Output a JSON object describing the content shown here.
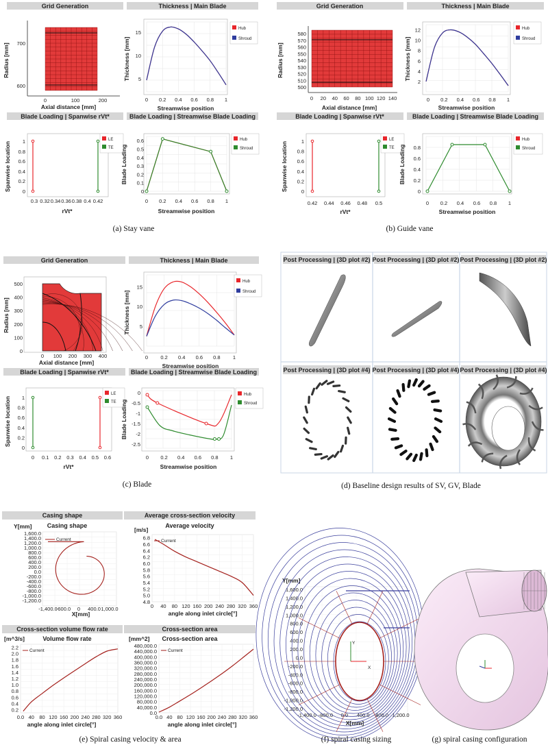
{
  "captions": {
    "a": "(a) Stay vane",
    "b": "(b) Guide vane",
    "c": "(c) Blade",
    "d": "(d) Baseline design results of SV, GV, Blade",
    "e": "(e) Spiral casing velocity & area",
    "f": "(f) spiral casing sizing",
    "g": "(g) spiral casing configuration"
  },
  "titles": {
    "grid": "Grid Generation",
    "thick": "Thickness | Main Blade",
    "span": "Blade Loading | Spanwise rVt*",
    "stream": "Blade Loading | Streamwise Blade Loading",
    "pp2": "Post Processing | (3D plot #2)",
    "pp4": "Post Processing | (3D plot #4)",
    "casing_shape": "Casing shape",
    "avg_vel": "Average cross-section velocity",
    "avg_vel_inner": "Average velocity",
    "flow": "Cross-section volume flow rate",
    "flow_inner": "Volume flow rate",
    "area": "Cross-section area",
    "area_inner": "Cross-section area"
  },
  "labels": {
    "radius": "Radius [mm]",
    "axial": "Axial distance [mm]",
    "thickness": "Thickness [mm]",
    "streamwise": "Streamwise position",
    "spanwise": "Spanwise location",
    "rvt": "rVt*",
    "loading": "Blade Loading",
    "ymm": "Y[mm]",
    "xmm": "X[mm]",
    "ms": "[m/s]",
    "m3s": "[m^3/s]",
    "m2": "[mm^2]",
    "angle": "angle along inlet circle[°]",
    "x_axis": "X",
    "y_axis": "Y"
  },
  "legend": {
    "hub": "Hub",
    "shroud": "Shroud",
    "le": "LE",
    "te": "TE",
    "current": "Current"
  },
  "colors": {
    "hub": "#e8262b",
    "shroud": "#2f3d9e",
    "le": "#e8262b",
    "te": "#2e8b2e",
    "casing": "#a4201c",
    "grid": "#e23a3a",
    "pink": "#f0d4ec"
  },
  "ticks": {
    "a_grid_y": [
      "700",
      "600"
    ],
    "a_grid_x": [
      "0",
      "100",
      "200"
    ],
    "a_thick_y": [
      "15",
      "10",
      "5"
    ],
    "unit_x": [
      "0",
      "0.2",
      "0.4",
      "0.6",
      "0.8",
      "1"
    ],
    "a_span_x": [
      "0.3",
      "0.32",
      "0.34",
      "0.36",
      "0.38",
      "0.4",
      "0.42"
    ],
    "span_y": [
      "1",
      "0.8",
      "0.6",
      "0.4",
      "0.2",
      "0"
    ],
    "a_load_y": [
      "0.6",
      "0.5",
      "0.4",
      "0.3",
      "0.2",
      "0.1",
      "0"
    ],
    "b_grid_y": [
      "580",
      "570",
      "560",
      "550",
      "540",
      "530",
      "520",
      "510",
      "500"
    ],
    "b_grid_x": [
      "0",
      "20",
      "40",
      "60",
      "80",
      "100",
      "120",
      "140"
    ],
    "b_thick_y": [
      "12",
      "10",
      "8",
      "6",
      "4",
      "2"
    ],
    "b_span_x": [
      "0.42",
      "0.44",
      "0.46",
      "0.48",
      "0.5"
    ],
    "b_load_y": [
      "0.8",
      "0.6",
      "0.4",
      "0.2",
      "0"
    ],
    "c_grid_y": [
      "500",
      "400",
      "300",
      "200",
      "100",
      "0"
    ],
    "c_grid_x": [
      "0",
      "100",
      "200",
      "300",
      "400"
    ],
    "c_thick_y": [
      "15",
      "10",
      "5"
    ],
    "c_span_x": [
      "0",
      "0.1",
      "0.2",
      "0.3",
      "0.4",
      "0.5",
      "0.6"
    ],
    "c_load_y": [
      "0",
      "-0.5",
      "-1",
      "-1.5",
      "-2",
      "-2.5"
    ],
    "e_shape_y": [
      "1,600.0",
      "1,400.0",
      "1,200.0",
      "1,000.0",
      "800.0",
      "600.0",
      "400.0",
      "200.0",
      "0.0",
      "-200.0",
      "-400.0",
      "-600.0",
      "-800.0",
      "-1,000.0",
      "-1,200.0"
    ],
    "e_shape_x": [
      "-1,400.0",
      "-600.0",
      "0",
      "400.0",
      "1,000.0"
    ],
    "e_vel_y": [
      "6.8",
      "6.6",
      "6.4",
      "6.2",
      "6.0",
      "5.8",
      "5.6",
      "5.4",
      "5.2",
      "5.0",
      "4.8"
    ],
    "e_angle_x": [
      "0.0",
      "40",
      "80",
      "120",
      "160",
      "200",
      "240",
      "280",
      "320",
      "360"
    ],
    "e_vel_x": [
      "0",
      "40",
      "80",
      "120",
      "160",
      "200",
      "240",
      "280",
      "320",
      "360"
    ],
    "e_flow_y": [
      "2.2",
      "2.0",
      "1.8",
      "1.6",
      "1.4",
      "1.2",
      "1.0",
      "0.8",
      "0.6",
      "0.4",
      "0.2"
    ],
    "e_area_y": [
      "480,000.0",
      "440,000.0",
      "400,000.0",
      "360,000.0",
      "320,000.0",
      "280,000.0",
      "240,000.0",
      "200,000.0",
      "160,000.0",
      "120,000.0",
      "80,000.0",
      "40,000.0",
      "0.0"
    ],
    "f_y": [
      "1,600.0",
      "1,400.0",
      "1,200.0",
      "1,000.0",
      "800.0",
      "600.0",
      "400.0",
      "200.0",
      "0.0",
      "-200.0",
      "-400.0",
      "-600.0",
      "-800.0",
      "-1,000.0",
      "-1,200.0"
    ],
    "f_x": [
      "-1,400.0",
      "-800.0",
      "0.0",
      "400.0",
      "800.0",
      "1,200.0"
    ]
  },
  "chart_data": [
    {
      "type": "line",
      "title": "Thickness | Main Blade",
      "xlabel": "Streamwise position",
      "ylabel": "Thickness [mm]",
      "series": [
        {
          "name": "Hub",
          "x": [
            0,
            0.1,
            0.2,
            0.3,
            0.4,
            0.5,
            0.6,
            0.7,
            0.8,
            0.9,
            1.0
          ],
          "y": [
            3,
            11.5,
            15.6,
            16.7,
            16.2,
            14.8,
            12.8,
            10.5,
            8,
            5,
            1.8
          ]
        },
        {
          "name": "Shroud",
          "x": [
            0,
            0.1,
            0.2,
            0.3,
            0.4,
            0.5,
            0.6,
            0.7,
            0.8,
            0.9,
            1.0
          ],
          "y": [
            3,
            11.5,
            15.6,
            16.7,
            16.2,
            14.8,
            12.8,
            10.5,
            8,
            5,
            1.8
          ]
        }
      ]
    },
    {
      "type": "line",
      "title": "Blade Loading | Streamwise Blade Loading",
      "xlabel": "Streamwise position",
      "ylabel": "Blade Loading",
      "series": [
        {
          "name": "Hub",
          "x": [
            0,
            0.2,
            0.8,
            1.0
          ],
          "y": [
            0,
            0.62,
            0.47,
            0
          ]
        },
        {
          "name": "Shroud",
          "x": [
            0,
            0.2,
            0.8,
            1.0
          ],
          "y": [
            0,
            0.62,
            0.47,
            0
          ]
        }
      ]
    },
    {
      "type": "line",
      "title": "Thickness | Main Blade",
      "xlabel": "Streamwise position",
      "ylabel": "Thickness [mm]",
      "series": [
        {
          "name": "Hub",
          "x": [
            0,
            0.1,
            0.2,
            0.3,
            0.4,
            0.5,
            0.6,
            0.7,
            0.8,
            0.9,
            1.0
          ],
          "y": [
            2,
            8.5,
            11.4,
            12,
            11.6,
            10.6,
            9.2,
            7.4,
            5.5,
            3.4,
            1.2
          ]
        },
        {
          "name": "Shroud",
          "x": [
            0,
            0.1,
            0.2,
            0.3,
            0.4,
            0.5,
            0.6,
            0.7,
            0.8,
            0.9,
            1.0
          ],
          "y": [
            2,
            8.5,
            11.4,
            12,
            11.6,
            10.6,
            9.2,
            7.4,
            5.5,
            3.4,
            1.2
          ]
        }
      ]
    },
    {
      "type": "line",
      "title": "Blade Loading | Streamwise Blade Loading",
      "xlabel": "Streamwise position",
      "ylabel": "Blade Loading",
      "series": [
        {
          "name": "Hub",
          "x": [
            0,
            0.3,
            0.7,
            1.0
          ],
          "y": [
            0,
            0.85,
            0.85,
            0
          ]
        },
        {
          "name": "Shroud",
          "x": [
            0,
            0.3,
            0.7,
            1.0
          ],
          "y": [
            0,
            0.85,
            0.85,
            0
          ]
        }
      ]
    },
    {
      "type": "line",
      "title": "Thickness | Main Blade",
      "xlabel": "Streamwise position",
      "ylabel": "Thickness [mm]",
      "series": [
        {
          "name": "Hub",
          "x": [
            0,
            0.1,
            0.2,
            0.3,
            0.4,
            0.5,
            0.6,
            0.7,
            0.8,
            0.9,
            1.0
          ],
          "y": [
            2.5,
            10,
            14.5,
            16.2,
            16.2,
            15,
            13.2,
            11,
            8.5,
            5.8,
            2.8
          ]
        },
        {
          "name": "Shroud",
          "x": [
            0,
            0.1,
            0.2,
            0.3,
            0.4,
            0.5,
            0.6,
            0.7,
            0.8,
            0.9,
            1.0
          ],
          "y": [
            2.5,
            7.6,
            10.5,
            11.6,
            11.5,
            10.7,
            9.6,
            8.2,
            6.5,
            4.6,
            2.8
          ]
        }
      ]
    },
    {
      "type": "line",
      "title": "Blade Loading | Streamwise Blade Loading",
      "xlabel": "Streamwise position",
      "ylabel": "Blade Loading",
      "series": [
        {
          "name": "Hub",
          "x": [
            0,
            0.12,
            0.7,
            0.85,
            1.0
          ],
          "y": [
            -0.1,
            -0.5,
            -1.5,
            -1.45,
            -0.1
          ]
        },
        {
          "name": "Shroud",
          "x": [
            0,
            0.15,
            0.3,
            0.5,
            0.75,
            0.8,
            0.9,
            1.0
          ],
          "y": [
            -0.7,
            -1.6,
            -1.85,
            -2.05,
            -2.25,
            -2.25,
            -2.1,
            -0.6
          ]
        }
      ]
    },
    {
      "type": "line",
      "title": "Average cross-section velocity",
      "xlabel": "angle along inlet circle[°]",
      "ylabel": "[m/s]",
      "series": [
        {
          "name": "Current",
          "x": [
            10,
            40,
            80,
            120,
            160,
            200,
            240,
            280,
            320,
            360
          ],
          "y": [
            6.75,
            6.6,
            6.38,
            6.2,
            6.05,
            5.9,
            5.75,
            5.6,
            5.4,
            5.0
          ]
        }
      ]
    },
    {
      "type": "line",
      "title": "Cross-section volume flow rate",
      "xlabel": "angle along inlet circle[°]",
      "ylabel": "[m^3/s]",
      "series": [
        {
          "name": "Current",
          "x": [
            10,
            40,
            80,
            120,
            160,
            200,
            240,
            280,
            320,
            360
          ],
          "y": [
            0.15,
            0.45,
            0.72,
            0.98,
            1.22,
            1.45,
            1.68,
            1.9,
            2.08,
            2.15
          ]
        }
      ]
    },
    {
      "type": "line",
      "title": "Cross-section area",
      "xlabel": "angle along inlet circle[°]",
      "ylabel": "[mm^2]",
      "series": [
        {
          "name": "Current",
          "x": [
            0,
            40,
            80,
            120,
            160,
            200,
            240,
            280,
            320,
            360
          ],
          "y": [
            5000,
            40000,
            85000,
            130000,
            178000,
            228000,
            280000,
            335000,
            395000,
            455000
          ]
        }
      ]
    }
  ]
}
